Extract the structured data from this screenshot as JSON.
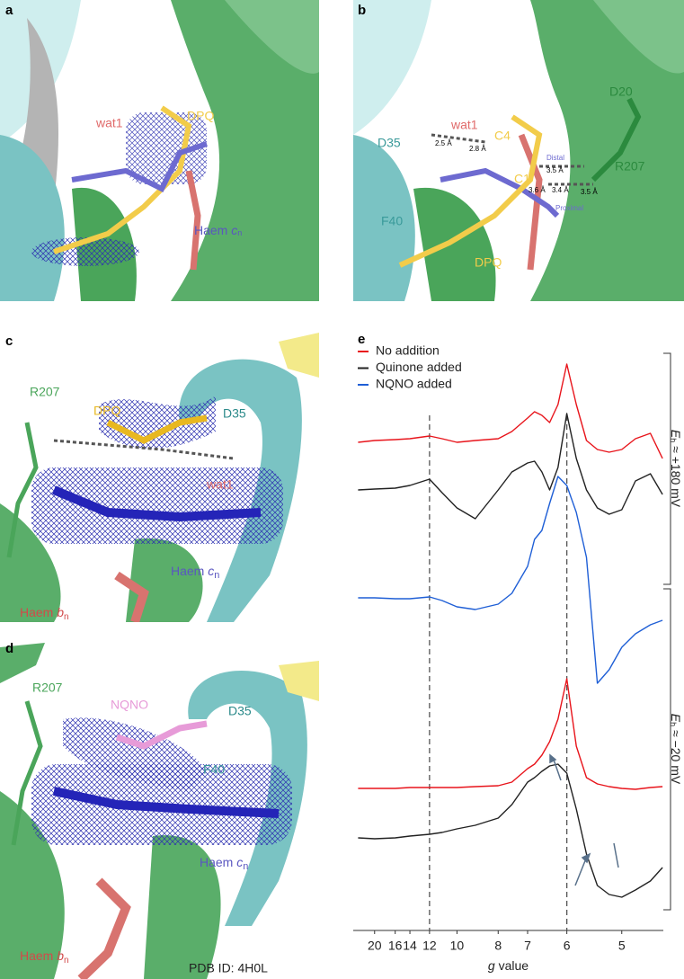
{
  "panel_a": {
    "label": "a",
    "wat1": "wat1",
    "dpq": "DPQ",
    "haem_cn": {
      "text": "Haem",
      "italic": "c",
      "sub": "n"
    }
  },
  "panel_b": {
    "label": "b",
    "d20": "D20",
    "d35": "D35",
    "wat1": "wat1",
    "d1": "2.5 Å",
    "d2": "2.8 Å",
    "c4": "C4",
    "c1": "C1",
    "distal": "Distal",
    "d3": "3.5 Å",
    "r207": "R207",
    "f40": "F40",
    "d4": "3.6 Å",
    "d5": "3.4 Å",
    "d6": "3.5 Å",
    "proximal": "Proximal",
    "dpq": "DPQ"
  },
  "panel_c": {
    "label": "c",
    "r207": "R207",
    "dpq": "DPQ",
    "d35": "D35",
    "wat1": "wat1",
    "haem_cn": {
      "text": "Haem",
      "italic": "c",
      "sub": "n"
    },
    "haem_bn": {
      "text": "Haem",
      "italic": "b",
      "sub": "n"
    }
  },
  "panel_d": {
    "label": "d",
    "r207": "R207",
    "nqno": "NQNO",
    "d35": "D35",
    "f40": "F40",
    "haem_cn": {
      "text": "Haem",
      "italic": "c",
      "sub": "n"
    },
    "haem_bn": {
      "text": "Haem",
      "italic": "b",
      "sub": "n"
    },
    "pdb": "PDB ID: 4H0L"
  },
  "chart_data": {
    "type": "line",
    "label": "e",
    "x_scale": "reciprocal",
    "xlabel": {
      "symbol": "g",
      "text": "value"
    },
    "x": [
      25,
      20,
      16,
      14,
      12,
      11,
      10,
      9,
      8,
      7.5,
      7,
      6.8,
      6.6,
      6.4,
      6.2,
      6.0,
      5.8,
      5.6,
      5.4,
      5.2,
      5.0,
      4.8,
      4.6,
      4.45
    ],
    "xlim": [
      27,
      4.44
    ],
    "xticks": [
      20,
      16,
      14,
      12,
      10,
      8,
      7,
      6,
      5
    ],
    "ylim": [
      0,
      655
    ],
    "vlines": [
      12,
      6
    ],
    "series": [
      {
        "name": "No addition",
        "color": "#e8141b",
        "values": [
          538,
          540,
          541,
          542,
          545,
          542,
          538,
          540,
          542,
          550,
          565,
          572,
          568,
          560,
          580,
          625,
          580,
          540,
          530,
          527,
          530,
          542,
          548,
          520
        ]
      },
      {
        "name": "Quinone added",
        "color": "#222222",
        "values": [
          485,
          486,
          487,
          490,
          497,
          482,
          465,
          453,
          485,
          505,
          515,
          517,
          505,
          485,
          510,
          570,
          520,
          485,
          465,
          458,
          463,
          495,
          503,
          480
        ]
      },
      {
        "name": "NQNO added",
        "color": "#1f5fd6",
        "values": [
          365,
          365,
          364,
          364,
          366,
          362,
          355,
          352,
          358,
          370,
          400,
          430,
          440,
          470,
          500,
          490,
          460,
          410,
          270,
          285,
          310,
          325,
          335,
          340
        ]
      },
      {
        "color": "#e8141b",
        "values": [
          153,
          153,
          153,
          154,
          154,
          154,
          154,
          155,
          156,
          160,
          175,
          180,
          190,
          205,
          230,
          275,
          200,
          165,
          158,
          155,
          153,
          152,
          154,
          155
        ]
      },
      {
        "color": "#222222",
        "values": [
          98,
          97,
          98,
          100,
          102,
          104,
          108,
          112,
          120,
          135,
          160,
          165,
          172,
          178,
          180,
          170,
          130,
          80,
          45,
          35,
          32,
          40,
          50,
          65
        ]
      }
    ],
    "legend": [
      0,
      1,
      2
    ],
    "potentials": [
      {
        "symbol": "E",
        "sub": "h",
        "text": "≈ +180 mV"
      },
      {
        "symbol": "E",
        "sub": "h",
        "text": "≈ −20 mV"
      }
    ]
  }
}
